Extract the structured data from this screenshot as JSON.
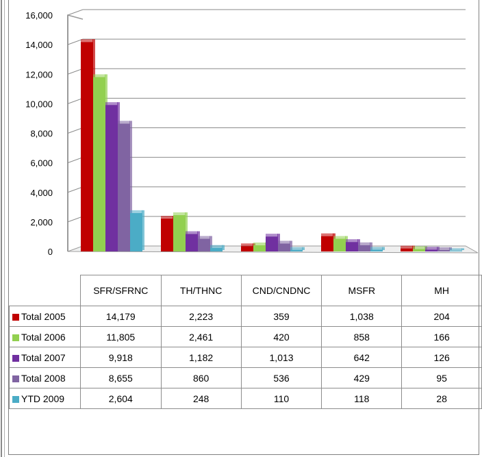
{
  "chart_data": {
    "type": "bar",
    "categories": [
      "SFR/SFRNC",
      "TH/THNC",
      "CND/CNDNC",
      "MSFR",
      "MH"
    ],
    "series": [
      {
        "name": "Total 2005",
        "color": "#c00000",
        "values": [
          14179,
          2223,
          359,
          1038,
          204
        ],
        "labels": [
          "14,179",
          "2,223",
          "359",
          "1,038",
          "204"
        ]
      },
      {
        "name": "Total 2006",
        "color": "#92d050",
        "values": [
          11805,
          2461,
          420,
          858,
          166
        ],
        "labels": [
          "11,805",
          "2,461",
          "420",
          "858",
          "166"
        ]
      },
      {
        "name": "Total 2007",
        "color": "#7030a0",
        "values": [
          9918,
          1182,
          1013,
          642,
          126
        ],
        "labels": [
          "9,918",
          "1,182",
          "1,013",
          "642",
          "126"
        ]
      },
      {
        "name": "Total 2008",
        "color": "#8064a2",
        "values": [
          8655,
          860,
          536,
          429,
          95
        ],
        "labels": [
          "8,655",
          "860",
          "536",
          "429",
          "95"
        ]
      },
      {
        "name": "YTD 2009",
        "color": "#4bacc6",
        "values": [
          2604,
          248,
          110,
          118,
          28
        ],
        "labels": [
          "2,604",
          "248",
          "110",
          "118",
          "28"
        ]
      }
    ],
    "yticks": [
      "0",
      "2,000",
      "4,000",
      "6,000",
      "8,000",
      "10,000",
      "12,000",
      "14,000",
      "16,000"
    ],
    "ylim": [
      0,
      16000
    ],
    "grid": true,
    "legend": "data-table"
  }
}
